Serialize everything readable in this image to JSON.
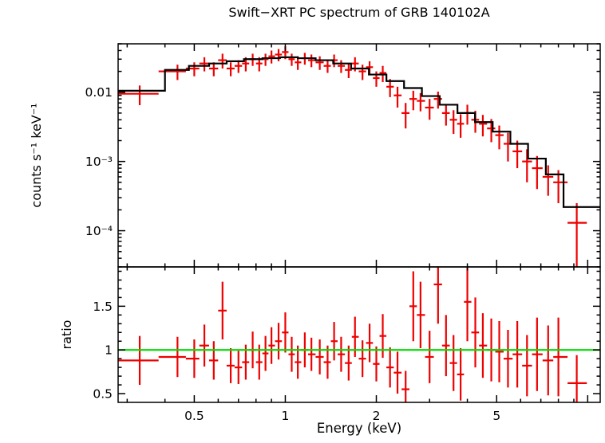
{
  "figure": {
    "title": "Swift−XRT PC spectrum of GRB 140102A",
    "xlabel": "Energy (keV)",
    "ylabel_top": "counts s⁻¹ keV⁻¹",
    "ylabel_bottom": "ratio"
  },
  "colors": {
    "data": "#ee0000",
    "model": "#000000",
    "unity_line": "#00dd00",
    "axis": "#000000",
    "background": "#ffffff"
  },
  "chart_data": {
    "type": "scatter",
    "title": "Swift−XRT PC spectrum of GRB 140102A",
    "xlabel": "Energy (keV)",
    "xscale": "log",
    "xlim": [
      0.28,
      11
    ],
    "xticks_labeled": [
      0.5,
      1,
      2,
      5
    ],
    "xticks_major": [
      0.5,
      1,
      2,
      5,
      10
    ],
    "legend": "none",
    "grid": false,
    "energies": [
      0.33,
      0.44,
      0.5,
      0.54,
      0.58,
      0.62,
      0.66,
      0.7,
      0.74,
      0.78,
      0.82,
      0.86,
      0.9,
      0.95,
      1.0,
      1.05,
      1.1,
      1.16,
      1.22,
      1.3,
      1.38,
      1.45,
      1.53,
      1.62,
      1.7,
      1.8,
      1.9,
      2.0,
      2.1,
      2.22,
      2.35,
      2.5,
      2.65,
      2.8,
      3.0,
      3.2,
      3.4,
      3.6,
      3.8,
      4.0,
      4.25,
      4.5,
      4.8,
      5.1,
      5.45,
      5.85,
      6.3,
      6.8,
      7.4,
      8.0,
      9.2
    ],
    "panels": [
      {
        "name": "spectrum",
        "ylabel": "counts s⁻¹ keV⁻¹",
        "yscale": "log",
        "ylim": [
          3e-05,
          0.05
        ],
        "yticks_labeled": [
          0.01,
          0.001,
          0.0001
        ],
        "ytick_labels": [
          "0.01",
          "10⁻³",
          "10⁻⁴"
        ],
        "series": [
          {
            "name": "data",
            "type": "errorbar",
            "y": [
              0.0095,
              0.02,
              0.022,
              0.026,
              0.022,
              0.029,
              0.022,
              0.024,
              0.026,
              0.03,
              0.026,
              0.03,
              0.033,
              0.035,
              0.038,
              0.03,
              0.027,
              0.031,
              0.029,
              0.027,
              0.024,
              0.029,
              0.024,
              0.021,
              0.026,
              0.02,
              0.023,
              0.016,
              0.019,
              0.012,
              0.009,
              0.005,
              0.008,
              0.0075,
              0.006,
              0.008,
              0.005,
              0.004,
              0.0035,
              0.005,
              0.004,
              0.0035,
              0.003,
              0.0024,
              0.0018,
              0.0014,
              0.001,
              0.0008,
              0.0006,
              0.0005,
              0.00013
            ],
            "yerr": [
              0.003,
              0.005,
              0.005,
              0.006,
              0.005,
              0.007,
              0.005,
              0.005,
              0.006,
              0.006,
              0.006,
              0.006,
              0.007,
              0.007,
              0.008,
              0.006,
              0.006,
              0.006,
              0.006,
              0.006,
              0.005,
              0.006,
              0.005,
              0.005,
              0.006,
              0.005,
              0.005,
              0.004,
              0.005,
              0.0035,
              0.003,
              0.002,
              0.0025,
              0.0022,
              0.002,
              0.0022,
              0.0017,
              0.0015,
              0.0013,
              0.0016,
              0.0014,
              0.0012,
              0.0011,
              0.0009,
              0.0008,
              0.0006,
              0.0005,
              0.0004,
              0.00028,
              0.00025,
              0.00012
            ]
          },
          {
            "name": "model",
            "type": "steps",
            "edges": [
              0.28,
              0.4,
              0.48,
              0.56,
              0.64,
              0.73,
              0.84,
              0.96,
              1.1,
              1.26,
              1.44,
              1.65,
              1.89,
              2.16,
              2.47,
              2.83,
              3.24,
              3.71,
              4.24,
              4.85,
              5.55,
              6.35,
              7.27,
              8.32,
              11.0
            ],
            "levels": [
              0.0105,
              0.021,
              0.024,
              0.026,
              0.028,
              0.03,
              0.031,
              0.032,
              0.031,
              0.029,
              0.026,
              0.022,
              0.018,
              0.0145,
              0.0115,
              0.0088,
              0.0066,
              0.005,
              0.0037,
              0.0027,
              0.0018,
              0.0011,
              0.00065,
              0.00022
            ]
          }
        ]
      },
      {
        "name": "ratio",
        "ylabel": "ratio",
        "yscale": "linear",
        "ylim": [
          0.4,
          1.95
        ],
        "yticks_labeled": [
          0.5,
          1,
          1.5
        ],
        "ytick_labels": [
          "0.5",
          "1",
          "1.5"
        ],
        "series": [
          {
            "name": "ratio-data",
            "type": "errorbar",
            "y": [
              0.88,
              0.92,
              0.9,
              1.05,
              0.88,
              1.45,
              0.82,
              0.8,
              0.86,
              1.0,
              0.86,
              0.96,
              1.05,
              1.1,
              1.2,
              0.95,
              0.86,
              1.0,
              0.95,
              0.92,
              0.86,
              1.1,
              0.95,
              0.85,
              1.15,
              0.9,
              1.08,
              0.84,
              1.16,
              0.8,
              0.74,
              0.55,
              1.5,
              1.4,
              0.92,
              1.75,
              1.05,
              0.85,
              0.72,
              1.55,
              1.2,
              1.05,
              1.0,
              0.98,
              0.9,
              0.95,
              0.82,
              0.95,
              0.88,
              0.92,
              0.62
            ],
            "yerr": [
              0.28,
              0.23,
              0.22,
              0.24,
              0.22,
              0.33,
              0.2,
              0.19,
              0.2,
              0.21,
              0.2,
              0.2,
              0.21,
              0.21,
              0.23,
              0.2,
              0.19,
              0.2,
              0.19,
              0.2,
              0.19,
              0.22,
              0.2,
              0.2,
              0.23,
              0.21,
              0.22,
              0.2,
              0.25,
              0.23,
              0.24,
              0.21,
              0.4,
              0.38,
              0.3,
              0.45,
              0.35,
              0.32,
              0.3,
              0.45,
              0.4,
              0.37,
              0.36,
              0.35,
              0.33,
              0.38,
              0.35,
              0.42,
              0.4,
              0.45,
              0.32
            ]
          },
          {
            "name": "unity-line",
            "type": "hline",
            "y": 1
          }
        ]
      }
    ]
  }
}
